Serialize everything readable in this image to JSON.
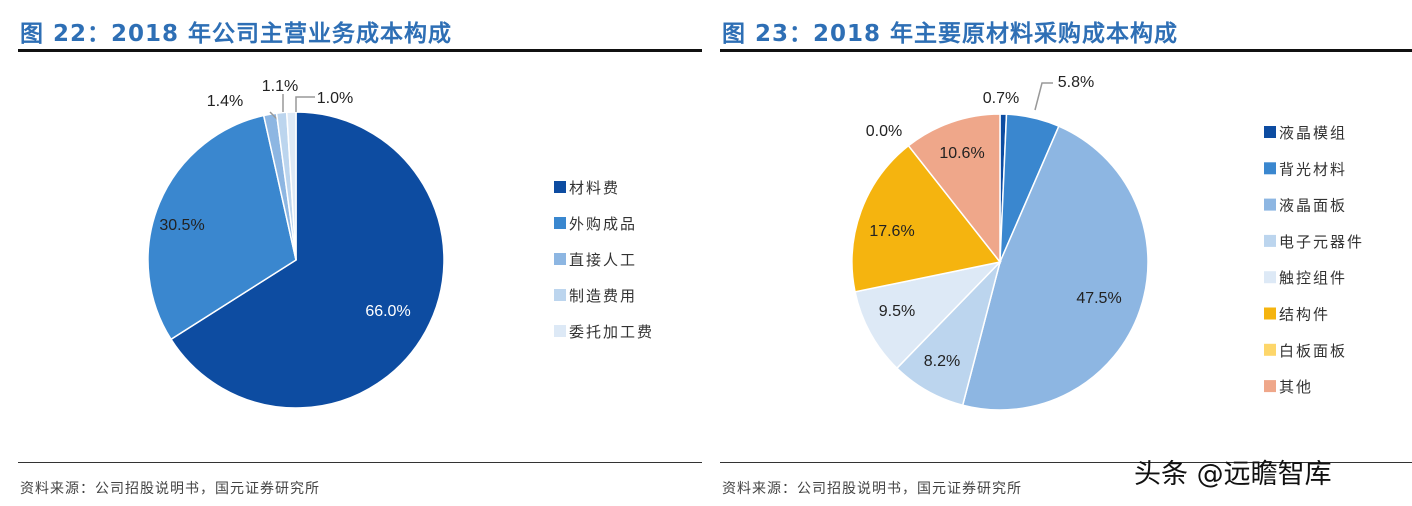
{
  "chart_data": [
    {
      "type": "pie",
      "title": "图 22：2018 年公司主营业务成本构成",
      "source": "资料来源：公司招股说明书，国元证券研究所",
      "legend_position": "right",
      "slices": [
        {
          "name": "材料费",
          "value": 66.0,
          "label": "66.0%",
          "color": "#0d4ca1"
        },
        {
          "name": "外购成品",
          "value": 30.5,
          "label": "30.5%",
          "color": "#3a87cf"
        },
        {
          "name": "直接人工",
          "value": 1.4,
          "label": "1.4%",
          "color": "#8db6e2"
        },
        {
          "name": "制造费用",
          "value": 1.1,
          "label": "1.1%",
          "color": "#bcd5ee"
        },
        {
          "name": "委托加工费",
          "value": 1.0,
          "label": "1.0%",
          "color": "#dde9f6"
        }
      ]
    },
    {
      "type": "pie",
      "title": "图 23：2018 年主要原材料采购成本构成",
      "source": "资料来源：公司招股说明书，国元证券研究所",
      "legend_position": "right",
      "slices": [
        {
          "name": "液晶模组",
          "value": 0.7,
          "label": "0.7%",
          "color": "#0d4ca1"
        },
        {
          "name": "背光材料",
          "value": 5.8,
          "label": "5.8%",
          "color": "#3a87cf"
        },
        {
          "name": "液晶面板",
          "value": 47.5,
          "label": "47.5%",
          "color": "#8db6e2"
        },
        {
          "name": "电子元器件",
          "value": 8.2,
          "label": "8.2%",
          "color": "#bcd5ee"
        },
        {
          "name": "触控组件",
          "value": 9.5,
          "label": "9.5%",
          "color": "#dde9f6"
        },
        {
          "name": "结构件",
          "value": 17.6,
          "label": "17.6%",
          "color": "#f5b40f"
        },
        {
          "name": "白板面板",
          "value": 0.0,
          "label": "0.0%",
          "color": "#fdd66a"
        },
        {
          "name": "其他",
          "value": 10.6,
          "label": "10.6%",
          "color": "#efa78a"
        }
      ]
    }
  ],
  "watermark": "头条 @远瞻智库"
}
